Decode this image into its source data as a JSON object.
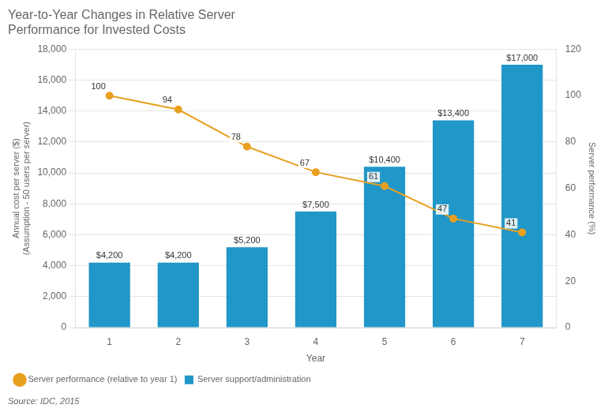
{
  "chart_data": {
    "type": "bar",
    "title": "Year-to-Year Changes in Relative Server\nPerformance for Invested Costs",
    "categories": [
      "1",
      "2",
      "3",
      "4",
      "5",
      "6",
      "7"
    ],
    "series": [
      {
        "name": "Server support/administration",
        "type": "bar",
        "color": "#2196C8",
        "values": [
          4200,
          4200,
          5200,
          7500,
          10400,
          13400,
          17000
        ],
        "value_labels": [
          "$4,200",
          "$4,200",
          "$5,200",
          "$7,500",
          "$10,400",
          "$13,400",
          "$17,000"
        ],
        "data_labels": true
      },
      {
        "name": "Server performance (relative to year 1)",
        "type": "line",
        "color": "#E8A020",
        "marker": "circle",
        "axis": "y2",
        "values": [
          100,
          94,
          78,
          67,
          61,
          47,
          41
        ],
        "data_labels": true
      }
    ],
    "xlabel": "Year",
    "ylabel": "Annual cost per server ($)\n(Assumption - 50 users per server)",
    "y2label": "Server performance (%)",
    "ylim": [
      0,
      18000
    ],
    "yticks": [
      0,
      {
        "value": 2000,
        "label": "2,000"
      },
      {
        "value": 4000,
        "label": "4,000"
      },
      {
        "value": 6000,
        "label": "6,000"
      },
      {
        "value": 8000,
        "label": "8,000"
      },
      {
        "value": 10000,
        "label": "10,000"
      },
      {
        "value": 12000,
        "label": "12,000"
      },
      {
        "value": 14000,
        "label": "14,000"
      },
      {
        "value": 16000,
        "label": "16,000"
      },
      {
        "value": 18000,
        "label": "18,000"
      }
    ],
    "y2lim": [
      0,
      120
    ],
    "y2ticks": [
      0,
      20,
      40,
      60,
      80,
      100,
      120
    ],
    "grid": true,
    "legend": "lower left",
    "annotations": [
      "Source: IDC, 2015"
    ]
  }
}
